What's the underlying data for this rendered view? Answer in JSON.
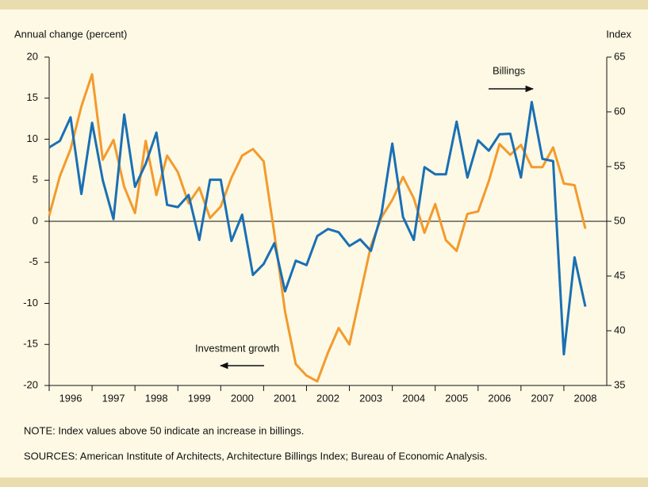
{
  "chart_data": {
    "type": "line",
    "y_label": "Annual change (percent)",
    "y2_label": "Index",
    "note": "NOTE: Index values above 50 indicate an increase in billings.",
    "sources": "SOURCES: American Institute of Architects, Architecture Billings Index; Bureau of Economic Analysis.",
    "x": [
      1996,
      1996.25,
      1996.5,
      1996.75,
      1997,
      1997.25,
      1997.5,
      1997.75,
      1998,
      1998.25,
      1998.5,
      1998.75,
      1999,
      1999.25,
      1999.5,
      1999.75,
      2000,
      2000.25,
      2000.5,
      2000.75,
      2001,
      2001.25,
      2001.5,
      2001.75,
      2002,
      2002.25,
      2002.5,
      2002.75,
      2003,
      2003.25,
      2003.5,
      2003.75,
      2004,
      2004.25,
      2004.5,
      2004.75,
      2005,
      2005.25,
      2005.5,
      2005.75,
      2006,
      2006.25,
      2006.5,
      2006.75,
      2007,
      2007.25,
      2007.5,
      2007.75,
      2008,
      2008.25,
      2008.5
    ],
    "series": [
      {
        "name": "Billings",
        "color": "#1a6fb5",
        "axis": "y2",
        "values": [
          56.75,
          57.35,
          59.5,
          52.5,
          59,
          53.75,
          50.2,
          59.75,
          53.15,
          55.25,
          58.1,
          51.5,
          51.3,
          52.4,
          48.3,
          53.8,
          53.8,
          48.2,
          50.6,
          45.1,
          46.1,
          48,
          43.6,
          46.4,
          46,
          48.65,
          49.3,
          49,
          47.75,
          48.35,
          47.3,
          50.75,
          57.1,
          50.4,
          48.3,
          54.95,
          54.3,
          54.3,
          59.1,
          54,
          57.4,
          56.45,
          57.95,
          58,
          54,
          60.9,
          55.7,
          55.5,
          37.85,
          46.7,
          42.2
        ]
      },
      {
        "name": "Investment growth",
        "color": "#f39a2d",
        "values": [
          0.7,
          5.5,
          8.8,
          14,
          17.9,
          7.5,
          9.9,
          4.2,
          1,
          9.8,
          3.2,
          8,
          6,
          2.2,
          4.1,
          0.4,
          1.8,
          5.3,
          8,
          8.8,
          7.3,
          -1.5,
          -11,
          -17.4,
          -18.8,
          -19.5,
          -16,
          -13,
          -15,
          -9,
          -3,
          0.5,
          2.6,
          5.4,
          2.8,
          -1.4,
          2.1,
          -2.3,
          -3.6,
          0.9,
          1.2,
          4.9,
          9.4,
          8.1,
          9.3,
          6.6,
          6.6,
          9,
          4.6,
          4.4,
          -0.9
        ]
      }
    ],
    "xlim": [
      1996,
      2009
    ],
    "xticks": [
      {
        "value": 1996,
        "label": "1996"
      },
      {
        "value": 1997,
        "label": "1997"
      },
      {
        "value": 1998,
        "label": "1998"
      },
      {
        "value": 1999,
        "label": "1999"
      },
      {
        "value": 2000,
        "label": "2000"
      },
      {
        "value": 2001,
        "label": "2001"
      },
      {
        "value": 2002,
        "label": "2002"
      },
      {
        "value": 2003,
        "label": "2003"
      },
      {
        "value": 2004,
        "label": "2004"
      },
      {
        "value": 2005,
        "label": "2005"
      },
      {
        "value": 2006,
        "label": "2006"
      },
      {
        "value": 2007,
        "label": "2007"
      },
      {
        "value": 2008,
        "label": "2008"
      }
    ],
    "ylim": [
      -20,
      20
    ],
    "yticks": [
      -20,
      -15,
      -10,
      -5,
      0,
      5,
      10,
      15,
      20
    ],
    "y2lim": [
      35,
      65
    ],
    "y2ticks": [
      35,
      40,
      45,
      50,
      55,
      60,
      65
    ]
  }
}
